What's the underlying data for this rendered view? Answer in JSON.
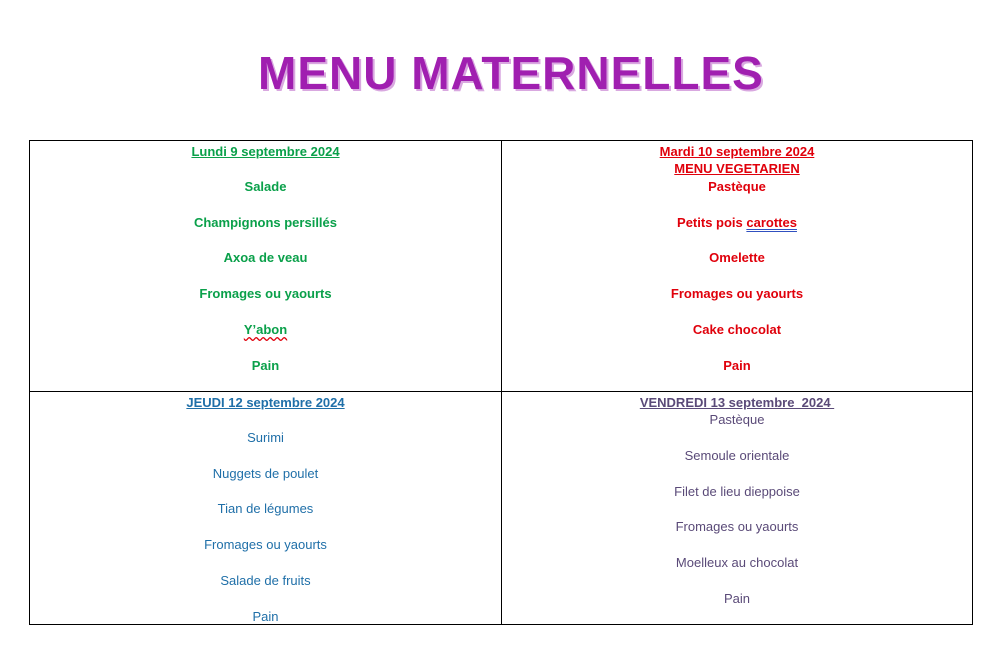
{
  "title": "MENU MATERNELLES",
  "lundi": {
    "date": "Lundi 9 septembre 2024",
    "items": [
      "Salade",
      "Champignons persillés",
      "Axoa de veau",
      "Fromages ou yaourts",
      "Y’abon",
      "Pain"
    ]
  },
  "mardi": {
    "date": "Mardi 10 septembre 2024",
    "subtitle": "MENU VEGETARIEN",
    "items": [
      "Pastèque",
      "Petits pois ",
      "carottes",
      "Omelette",
      "Fromages ou yaourts",
      "Cake chocolat",
      "Pain"
    ]
  },
  "jeudi": {
    "date": "JEUDI 12 septembre 2024",
    "items": [
      "Surimi",
      "Nuggets de poulet",
      "Tian de légumes",
      "Fromages ou yaourts",
      "Salade de fruits",
      "Pain"
    ]
  },
  "vendredi": {
    "date": "VENDREDI 13 septembre  2024 ",
    "items": [
      "Pastèque",
      "Semoule orientale",
      "Filet de lieu dieppoise",
      "Fromages ou yaourts",
      "Moelleux au chocolat",
      "Pain"
    ]
  },
  "colors": {
    "title": "#a01fb0",
    "lundi": "#0aa04a",
    "mardi": "#e0000b",
    "jeudi": "#1f6fa8",
    "vendredi": "#5a4a78"
  }
}
